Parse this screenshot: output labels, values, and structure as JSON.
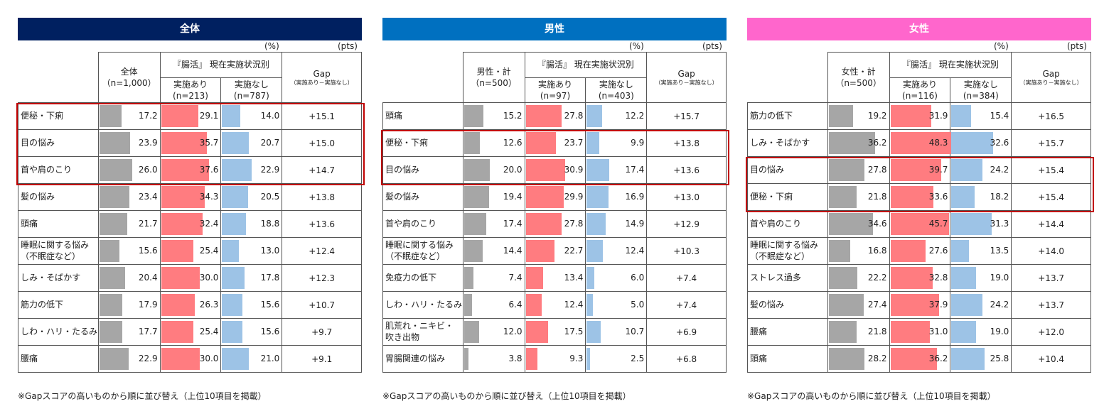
{
  "chart_data": [
    {
      "type": "table",
      "title": "全体",
      "unit_pct": "(%)",
      "unit_pts": "(pts)",
      "col_total_label": "全体",
      "col_total_n": "（n=1,000）",
      "group_header": "『腸活』 現在実施状況別",
      "col_yes_label": "実施あり",
      "col_yes_n": "(n=213)",
      "col_no_label": "実施なし",
      "col_no_n": "(n=787)",
      "gap_label": "Gap",
      "gap_sub": "（実施あり－実施なし）",
      "footnote": "※Gapスコアの高いものから順に並び替え（上位10項目を掲載）",
      "highlight_rows": [
        0,
        2
      ],
      "rows": [
        {
          "label": "便秘・下痢",
          "total": 17.2,
          "yes": 29.1,
          "no": 14.0,
          "gap": "+15.1"
        },
        {
          "label": "目の悩み",
          "total": 23.9,
          "yes": 35.7,
          "no": 20.7,
          "gap": "+15.0"
        },
        {
          "label": "首や肩のこり",
          "total": 26.0,
          "yes": 37.6,
          "no": 22.9,
          "gap": "+14.7"
        },
        {
          "label": "髪の悩み",
          "total": 23.4,
          "yes": 34.3,
          "no": 20.5,
          "gap": "+13.8"
        },
        {
          "label": "頭痛",
          "total": 21.7,
          "yes": 32.4,
          "no": 18.8,
          "gap": "+13.6"
        },
        {
          "label": "睡眠に関する悩み\n（不眠症など）",
          "total": 15.6,
          "yes": 25.4,
          "no": 13.0,
          "gap": "+12.4"
        },
        {
          "label": "しみ・そばかす",
          "total": 20.4,
          "yes": 30.0,
          "no": 17.8,
          "gap": "+12.3"
        },
        {
          "label": "筋力の低下",
          "total": 17.9,
          "yes": 26.3,
          "no": 15.6,
          "gap": "+10.7"
        },
        {
          "label": "しわ・ハリ・たるみ",
          "total": 17.7,
          "yes": 25.4,
          "no": 15.6,
          "gap": "+9.7"
        },
        {
          "label": "腰痛",
          "total": 22.9,
          "yes": 30.0,
          "no": 21.0,
          "gap": "+9.1"
        }
      ]
    },
    {
      "type": "table",
      "title": "男性",
      "unit_pct": "(%)",
      "unit_pts": "(pts)",
      "col_total_label": "男性・計",
      "col_total_n": "（n=500）",
      "group_header": "『腸活』 現在実施状況別",
      "col_yes_label": "実施あり",
      "col_yes_n": "(n=97)",
      "col_no_label": "実施なし",
      "col_no_n": "(n=403)",
      "gap_label": "Gap",
      "gap_sub": "（実施あり－実施なし）",
      "footnote": "※Gapスコアの高いものから順に並び替え（上位10項目を掲載）",
      "highlight_rows": [
        1,
        2
      ],
      "rows": [
        {
          "label": "頭痛",
          "total": 15.2,
          "yes": 27.8,
          "no": 12.2,
          "gap": "+15.7"
        },
        {
          "label": "便秘・下痢",
          "total": 12.6,
          "yes": 23.7,
          "no": 9.9,
          "gap": "+13.8"
        },
        {
          "label": "目の悩み",
          "total": 20.0,
          "yes": 30.9,
          "no": 17.4,
          "gap": "+13.6"
        },
        {
          "label": "髪の悩み",
          "total": 19.4,
          "yes": 29.9,
          "no": 16.9,
          "gap": "+13.0"
        },
        {
          "label": "首や肩のこり",
          "total": 17.4,
          "yes": 27.8,
          "no": 14.9,
          "gap": "+12.9"
        },
        {
          "label": "睡眠に関する悩み\n（不眠症など）",
          "total": 14.4,
          "yes": 22.7,
          "no": 12.4,
          "gap": "+10.3"
        },
        {
          "label": "免疫力の低下",
          "total": 7.4,
          "yes": 13.4,
          "no": 6.0,
          "gap": "+7.4"
        },
        {
          "label": "しわ・ハリ・たるみ",
          "total": 6.4,
          "yes": 12.4,
          "no": 5.0,
          "gap": "+7.4"
        },
        {
          "label": "肌荒れ・ニキビ・\n吹き出物",
          "total": 12.0,
          "yes": 17.5,
          "no": 10.7,
          "gap": "+6.9"
        },
        {
          "label": "胃腸関連の悩み",
          "total": 3.8,
          "yes": 9.3,
          "no": 2.5,
          "gap": "+6.8"
        }
      ]
    },
    {
      "type": "table",
      "title": "女性",
      "unit_pct": "(%)",
      "unit_pts": "(pts)",
      "col_total_label": "女性・計",
      "col_total_n": "（n=500）",
      "group_header": "『腸活』 現在実施状況別",
      "col_yes_label": "実施あり",
      "col_yes_n": "(n=116)",
      "col_no_label": "実施なし",
      "col_no_n": "(n=384)",
      "gap_label": "Gap",
      "gap_sub": "（実施あり－実施なし）",
      "footnote": "※Gapスコアの高いものから順に並び替え（上位10項目を掲載）",
      "highlight_rows": [
        2,
        3
      ],
      "rows": [
        {
          "label": "筋力の低下",
          "total": 19.2,
          "yes": 31.9,
          "no": 15.4,
          "gap": "+16.5"
        },
        {
          "label": "しみ・そばかす",
          "total": 36.2,
          "yes": 48.3,
          "no": 32.6,
          "gap": "+15.7"
        },
        {
          "label": "目の悩み",
          "total": 27.8,
          "yes": 39.7,
          "no": 24.2,
          "gap": "+15.4"
        },
        {
          "label": "便秘・下痢",
          "total": 21.8,
          "yes": 33.6,
          "no": 18.2,
          "gap": "+15.4"
        },
        {
          "label": "首や肩のこり",
          "total": 34.6,
          "yes": 45.7,
          "no": 31.3,
          "gap": "+14.4"
        },
        {
          "label": "睡眠に関する悩み\n（不眠症など）",
          "total": 16.8,
          "yes": 27.6,
          "no": 13.5,
          "gap": "+14.0"
        },
        {
          "label": "ストレス過多",
          "total": 22.2,
          "yes": 32.8,
          "no": 19.0,
          "gap": "+13.7"
        },
        {
          "label": "髪の悩み",
          "total": 27.4,
          "yes": 37.9,
          "no": 24.2,
          "gap": "+13.7"
        },
        {
          "label": "腰痛",
          "total": 21.8,
          "yes": 31.0,
          "no": 19.0,
          "gap": "+12.0"
        },
        {
          "label": "頭痛",
          "total": 28.2,
          "yes": 36.2,
          "no": 25.8,
          "gap": "+10.4"
        }
      ]
    }
  ],
  "colors": {
    "banner_all": "#002060",
    "banner_male": "#0070c0",
    "banner_female": "#ff66cc",
    "bar_total": "#a6a6a6",
    "bar_yes": "#ff7c80",
    "bar_no": "#9dc3e6",
    "highlight": "#c00000"
  },
  "bar_scale_max": 100
}
